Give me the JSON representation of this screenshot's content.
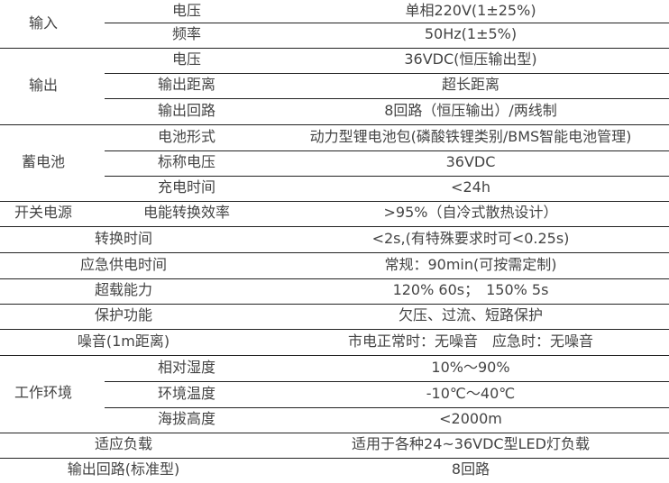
{
  "groups": [
    {
      "label": "输入"
    },
    {
      "label": "输出"
    },
    {
      "label": "蓄电池"
    },
    {
      "label": "开关电源"
    },
    {
      "label": "工作环境"
    }
  ],
  "rows": [
    {
      "label": "电压",
      "value": "单相220V(1±25%)"
    },
    {
      "label": "频率",
      "value": "50Hz(1±5%)"
    },
    {
      "label": "电压",
      "value": "36VDC(恒压输出型)"
    },
    {
      "label": "输出距离",
      "value": "超长距离"
    },
    {
      "label": "输出回路",
      "value": "8回路（恒压输出）/两线制"
    },
    {
      "label": "电池形式",
      "value": "动力型锂电池包(磷酸铁锂类别/BMS智能电池管理)"
    },
    {
      "label": "标称电压",
      "value": "36VDC"
    },
    {
      "label": "充电时间",
      "value": "<24h"
    },
    {
      "label": "电能转换效率",
      "value": ">95%（自冷式散热设计）"
    },
    {
      "label": "转换时间",
      "value": "<2s,(有特殊要求时可<0.25s)"
    },
    {
      "label": "应急供电时间",
      "value": "常规：90min(可按需定制)"
    },
    {
      "label": "超载能力",
      "value": "120% 60s；　150% 5s"
    },
    {
      "label": "保护功能",
      "value": "欠压、过流、短路保护"
    },
    {
      "label": "噪音(1m距离)",
      "value": "市电正常时：无噪音　应急时：无噪音"
    },
    {
      "label": "相对湿度",
      "value": "10%～90%"
    },
    {
      "label": "环境温度",
      "value": "-10℃～40℃"
    },
    {
      "label": "海拔高度",
      "value": "<2000m"
    },
    {
      "label": "适应负载",
      "value": "适用于各种24~36VDC型LED灯负载"
    },
    {
      "label": "输出回路(标准型)",
      "value": "8回路"
    }
  ]
}
